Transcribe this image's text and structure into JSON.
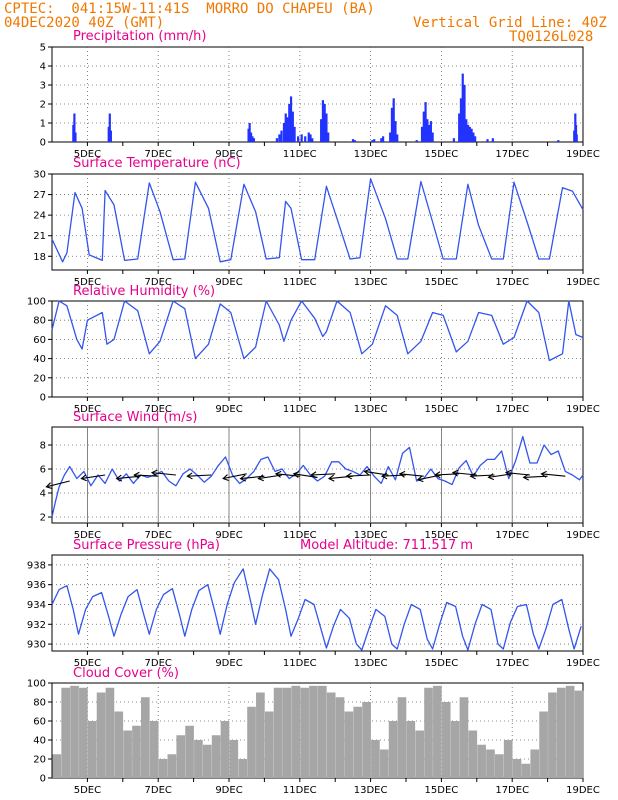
{
  "header": {
    "line1": "CPTEC:  041:15W-11:41S  MORRO DO CHAPEU (BA)",
    "line2": "04DEC2020 40Z (GMT)",
    "grid_note": "Vertical Grid Line: 40Z",
    "run_code": "TQ0126L028"
  },
  "model_altitude": "Model Altitude: 711.517 m",
  "colors": {
    "header": "#f07800",
    "title": "#e8008c",
    "line": "#3355ee",
    "bar": "#2233ff",
    "cloud": "#a6a6a6",
    "arrow": "#000000"
  },
  "date_ticks": [
    "5DEC",
    "7DEC",
    "9DEC",
    "11DEC",
    "13DEC",
    "15DEC",
    "17DEC",
    "19DEC"
  ],
  "chart_data": [
    {
      "type": "bar",
      "title": "Precipitation (mm/h)",
      "ylim": [
        0,
        5
      ],
      "yticks": [
        0,
        1,
        2,
        3,
        4,
        5
      ],
      "xrange_days": [
        4.0,
        19.0
      ],
      "x": [
        4.6,
        4.63,
        4.66,
        5.6,
        5.63,
        5.66,
        9.55,
        9.58,
        9.62,
        9.66,
        9.7,
        10.35,
        10.42,
        10.48,
        10.55,
        10.6,
        10.65,
        10.7,
        10.75,
        10.8,
        10.85,
        10.95,
        11.05,
        11.15,
        11.25,
        11.3,
        11.35,
        11.6,
        11.65,
        11.7,
        11.75,
        11.8,
        12.5,
        12.55,
        13.05,
        13.1,
        13.3,
        13.35,
        13.55,
        13.6,
        13.65,
        13.7,
        13.75,
        14.3,
        14.45,
        14.5,
        14.55,
        14.6,
        14.65,
        14.7,
        14.75,
        15.35,
        15.5,
        15.55,
        15.6,
        15.65,
        15.7,
        15.75,
        15.8,
        15.85,
        15.9,
        15.95,
        16.3,
        16.45,
        18.3,
        18.75,
        18.78,
        18.8,
        18.82
      ],
      "values": [
        0.9,
        1.5,
        0.5,
        0.8,
        1.5,
        0.6,
        0.7,
        1.0,
        0.5,
        0.3,
        0.2,
        0.2,
        0.4,
        0.6,
        1.0,
        1.5,
        1.3,
        2.0,
        2.4,
        1.6,
        0.8,
        0.3,
        0.4,
        0.3,
        0.5,
        0.4,
        0.2,
        1.2,
        2.2,
        2.0,
        1.5,
        0.5,
        0.15,
        0.1,
        0.1,
        0.15,
        0.2,
        0.3,
        0.5,
        1.8,
        2.3,
        1.1,
        0.4,
        0.1,
        0.8,
        1.6,
        2.1,
        1.2,
        0.9,
        1.1,
        0.5,
        0.2,
        1.5,
        2.3,
        3.6,
        3.0,
        1.2,
        0.9,
        0.8,
        0.7,
        0.5,
        0.3,
        0.15,
        0.2,
        0.1,
        0.6,
        1.5,
        0.9,
        0.4
      ]
    },
    {
      "type": "line",
      "title": "Surface Temperature (nC)",
      "ylim": [
        16,
        30
      ],
      "yticks": [
        18,
        21,
        24,
        27,
        30
      ],
      "xrange_days": [
        4.0,
        19.0
      ],
      "x": [
        4.0,
        4.3,
        4.42,
        4.65,
        4.85,
        5.05,
        5.42,
        5.5,
        5.75,
        6.05,
        6.42,
        6.75,
        7.05,
        7.42,
        7.75,
        8.05,
        8.42,
        8.75,
        9.05,
        9.42,
        9.75,
        10.05,
        10.42,
        10.6,
        10.75,
        11.05,
        11.42,
        11.75,
        12.05,
        12.42,
        12.7,
        13.0,
        13.42,
        13.75,
        14.05,
        14.42,
        14.75,
        15.05,
        15.42,
        15.75,
        16.05,
        16.42,
        16.75,
        17.05,
        17.42,
        17.75,
        18.05,
        18.42,
        18.7,
        19.0
      ],
      "values": [
        20.5,
        17.2,
        18.5,
        27.3,
        25.0,
        18.2,
        17.4,
        27.6,
        25.5,
        17.4,
        17.6,
        28.7,
        24.5,
        17.5,
        17.6,
        28.8,
        25.0,
        17.2,
        17.5,
        28.5,
        24.5,
        17.6,
        17.8,
        26.0,
        25.0,
        17.5,
        17.5,
        28.2,
        23.5,
        17.6,
        17.8,
        29.3,
        23.5,
        17.6,
        17.6,
        28.9,
        23.0,
        17.6,
        17.6,
        28.5,
        22.5,
        17.6,
        17.6,
        28.8,
        23.0,
        17.6,
        17.6,
        28.0,
        27.5,
        24.8
      ]
    },
    {
      "type": "line",
      "title": "Relative Humidity (%)",
      "ylim": [
        0,
        100
      ],
      "yticks": [
        0,
        20,
        40,
        60,
        80,
        100
      ],
      "xrange_days": [
        4.0,
        19.0
      ],
      "x": [
        4.0,
        4.2,
        4.42,
        4.7,
        4.85,
        5.0,
        5.42,
        5.55,
        5.75,
        6.05,
        6.42,
        6.75,
        7.05,
        7.42,
        7.75,
        8.05,
        8.42,
        8.75,
        9.05,
        9.42,
        9.75,
        10.05,
        10.42,
        10.55,
        10.75,
        11.05,
        11.42,
        11.65,
        11.75,
        12.05,
        12.42,
        12.75,
        13.05,
        13.42,
        13.75,
        14.05,
        14.42,
        14.75,
        15.05,
        15.42,
        15.75,
        16.05,
        16.42,
        16.75,
        17.05,
        17.42,
        17.75,
        18.05,
        18.42,
        18.6,
        18.8,
        19.0
      ],
      "values": [
        70,
        100,
        95,
        60,
        50,
        80,
        88,
        55,
        60,
        100,
        90,
        45,
        58,
        100,
        92,
        40,
        55,
        97,
        88,
        40,
        52,
        100,
        75,
        58,
        80,
        100,
        82,
        63,
        68,
        100,
        88,
        45,
        55,
        95,
        85,
        45,
        58,
        88,
        85,
        47,
        58,
        88,
        85,
        55,
        62,
        100,
        88,
        38,
        45,
        100,
        65,
        62
      ]
    },
    {
      "type": "line",
      "title": "Surface Wind (m/s)",
      "ylim": [
        1.5,
        9.5
      ],
      "yticks": [
        2,
        4,
        6,
        8
      ],
      "xrange_days": [
        4.0,
        19.0
      ],
      "x": [
        4.0,
        4.1,
        4.2,
        4.35,
        4.5,
        4.7,
        4.9,
        5.1,
        5.3,
        5.5,
        5.7,
        5.9,
        6.1,
        6.3,
        6.5,
        6.7,
        6.9,
        7.1,
        7.3,
        7.5,
        7.7,
        7.9,
        8.1,
        8.3,
        8.5,
        8.7,
        8.9,
        9.1,
        9.3,
        9.5,
        9.7,
        9.9,
        10.1,
        10.3,
        10.5,
        10.7,
        10.9,
        11.1,
        11.3,
        11.5,
        11.7,
        11.9,
        12.1,
        12.3,
        12.5,
        12.7,
        12.9,
        13.1,
        13.3,
        13.5,
        13.7,
        13.9,
        14.1,
        14.3,
        14.5,
        14.7,
        14.9,
        15.1,
        15.3,
        15.5,
        15.7,
        15.9,
        16.1,
        16.3,
        16.5,
        16.7,
        16.9,
        17.1,
        17.3,
        17.5,
        17.7,
        17.9,
        18.1,
        18.3,
        18.5,
        18.7,
        18.9,
        19.0
      ],
      "values": [
        2.0,
        3.3,
        4.5,
        5.5,
        6.2,
        5.2,
        5.8,
        4.6,
        5.5,
        4.8,
        6.0,
        5.0,
        5.6,
        4.8,
        5.5,
        5.3,
        5.5,
        5.8,
        5.0,
        4.6,
        5.6,
        6.0,
        5.5,
        4.9,
        5.4,
        6.3,
        7.0,
        5.5,
        4.8,
        5.2,
        5.8,
        6.8,
        7.0,
        5.8,
        6.0,
        5.2,
        5.6,
        6.3,
        5.5,
        5.0,
        5.4,
        6.6,
        6.6,
        6.0,
        5.8,
        5.5,
        6.2,
        5.4,
        4.8,
        6.2,
        5.1,
        7.3,
        7.8,
        5.0,
        5.2,
        6.0,
        5.2,
        5.0,
        4.7,
        6.1,
        6.7,
        5.4,
        6.3,
        6.8,
        6.8,
        7.5,
        5.2,
        6.7,
        8.7,
        6.5,
        6.5,
        8.0,
        7.2,
        7.5,
        5.8,
        5.5,
        5.1,
        5.5
      ],
      "wind_arrows_x": [
        4.5,
        5.5,
        6.5,
        7.0,
        7.5,
        8.5,
        9.5,
        10.0,
        10.5,
        11.0,
        11.5,
        12.0,
        12.5,
        13.0,
        13.5,
        14.0,
        14.5,
        15.0,
        15.5,
        16.0,
        16.5,
        17.0,
        17.5,
        18.0,
        18.5
      ],
      "wind_speed": [
        5.0,
        5.5,
        5.4,
        5.4,
        5.5,
        5.5,
        5.6,
        5.4,
        5.5,
        5.4,
        5.3,
        5.6,
        5.4,
        5.5,
        5.5,
        5.5,
        5.4,
        5.5,
        5.6,
        5.5,
        5.5,
        5.6,
        5.5,
        5.4,
        5.4
      ],
      "wind_dir_dx": [
        -1.0,
        -1.0,
        -1.0,
        -1.0,
        -1.0,
        -1.0,
        -1.0,
        -1.0,
        -1.0,
        -1.0,
        -1.0,
        -1.0,
        -1.0,
        -1.0,
        -1.0,
        -1.0,
        -1.0,
        -1.0,
        -1.0,
        -1.0,
        -1.0,
        -1.0,
        -1.0,
        -1.0,
        -1.0
      ],
      "wind_dir_dy": [
        0.25,
        0.15,
        0.1,
        -0.05,
        -0.1,
        0.05,
        0.2,
        0.1,
        0.15,
        -0.1,
        -0.15,
        0.05,
        0.1,
        0.05,
        -0.15,
        0.05,
        -0.1,
        0.2,
        0.05,
        -0.1,
        0.05,
        0.15,
        -0.1,
        0.05,
        -0.1
      ]
    },
    {
      "type": "line",
      "title": "Surface Pressure (hPa)",
      "ylim": [
        929.3,
        939
      ],
      "yticks": [
        930,
        932,
        934,
        936,
        938
      ],
      "xrange_days": [
        4.0,
        19.0
      ],
      "x": [
        4.0,
        4.2,
        4.42,
        4.6,
        4.75,
        4.95,
        5.15,
        5.4,
        5.6,
        5.75,
        5.95,
        6.15,
        6.4,
        6.6,
        6.75,
        6.95,
        7.15,
        7.4,
        7.6,
        7.75,
        7.95,
        8.15,
        8.4,
        8.6,
        8.75,
        8.95,
        9.15,
        9.4,
        9.6,
        9.75,
        9.95,
        10.15,
        10.4,
        10.6,
        10.75,
        10.95,
        11.15,
        11.4,
        11.6,
        11.75,
        11.95,
        12.15,
        12.4,
        12.6,
        12.75,
        12.95,
        13.15,
        13.4,
        13.6,
        13.75,
        13.95,
        14.15,
        14.4,
        14.6,
        14.75,
        14.95,
        15.15,
        15.4,
        15.6,
        15.75,
        15.95,
        16.15,
        16.4,
        16.6,
        16.75,
        16.95,
        17.15,
        17.4,
        17.6,
        17.75,
        17.95,
        18.15,
        18.4,
        18.6,
        18.75,
        18.95
      ],
      "values": [
        934.0,
        935.5,
        935.9,
        933.5,
        931.0,
        933.5,
        934.8,
        935.2,
        932.8,
        930.8,
        933.0,
        934.8,
        935.5,
        932.9,
        931.0,
        933.5,
        935.0,
        935.6,
        933.0,
        930.8,
        933.5,
        935.4,
        936.0,
        933.3,
        931.0,
        934.0,
        936.2,
        937.6,
        934.5,
        932.0,
        935.0,
        937.6,
        936.5,
        933.5,
        930.8,
        932.5,
        934.5,
        934.0,
        931.5,
        929.6,
        931.8,
        933.5,
        932.6,
        930.0,
        929.4,
        931.5,
        933.5,
        932.8,
        930.0,
        929.5,
        932.0,
        934.0,
        933.5,
        930.5,
        929.5,
        932.0,
        934.2,
        933.8,
        930.8,
        929.4,
        932.0,
        934.0,
        933.5,
        930.0,
        929.5,
        932.2,
        933.8,
        934.0,
        931.0,
        929.5,
        931.5,
        934.0,
        934.5,
        931.5,
        929.5,
        931.8
      ]
    },
    {
      "type": "bar",
      "title": "Cloud Cover (%)",
      "ylim": [
        0,
        100
      ],
      "yticks": [
        0,
        20,
        40,
        60,
        80,
        100
      ],
      "xrange_days": [
        4.0,
        19.0
      ],
      "x": [
        4.0,
        4.25,
        4.5,
        4.75,
        5.0,
        5.25,
        5.5,
        5.75,
        6.0,
        6.25,
        6.5,
        6.75,
        7.0,
        7.25,
        7.5,
        7.75,
        8.0,
        8.25,
        8.5,
        8.75,
        9.0,
        9.25,
        9.5,
        9.75,
        10.0,
        10.25,
        10.5,
        10.75,
        11.0,
        11.25,
        11.5,
        11.75,
        12.0,
        12.25,
        12.5,
        12.75,
        13.0,
        13.25,
        13.5,
        13.75,
        14.0,
        14.25,
        14.5,
        14.75,
        15.0,
        15.25,
        15.5,
        15.75,
        16.0,
        16.25,
        16.5,
        16.75,
        17.0,
        17.25,
        17.5,
        17.75,
        18.0,
        18.25,
        18.5,
        18.75
      ],
      "values": [
        25,
        95,
        97,
        95,
        60,
        90,
        95,
        70,
        50,
        55,
        85,
        60,
        20,
        25,
        45,
        55,
        40,
        35,
        45,
        60,
        40,
        20,
        75,
        90,
        70,
        95,
        95,
        97,
        95,
        97,
        97,
        90,
        85,
        70,
        75,
        80,
        40,
        30,
        60,
        85,
        60,
        50,
        95,
        97,
        80,
        60,
        85,
        50,
        35,
        30,
        25,
        40,
        20,
        15,
        30,
        70,
        90,
        95,
        97,
        92
      ]
    }
  ]
}
